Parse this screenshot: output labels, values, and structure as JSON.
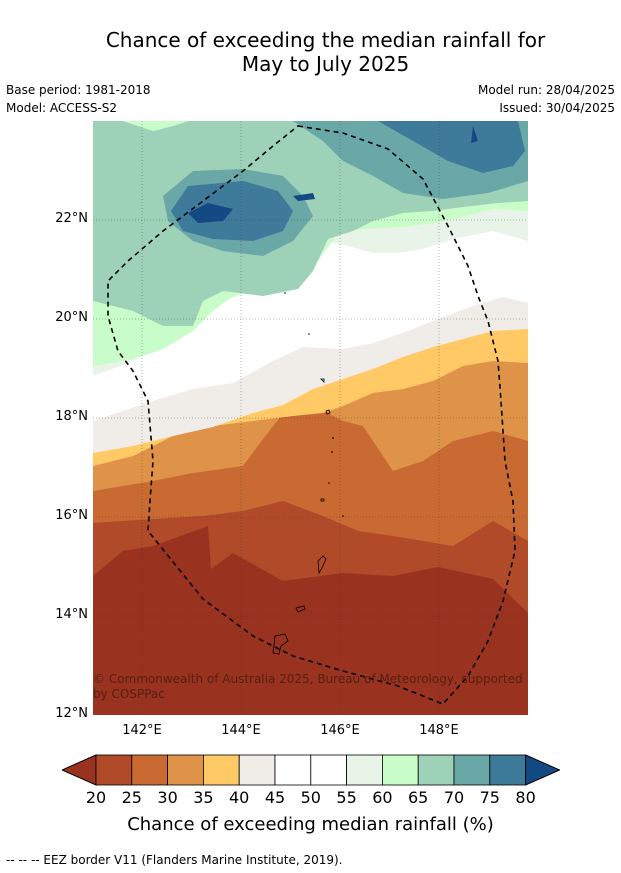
{
  "header": {
    "title_line1": "Chance of exceeding the median rainfall for",
    "title_line2": "May to July 2025",
    "base_period": "Base period: 1981-2018",
    "model": "Model: ACCESS-S2",
    "model_run": "Model run: 28/04/2025",
    "issued": "Issued: 30/04/2025"
  },
  "map": {
    "lat_labels": [
      "22°N",
      "20°N",
      "18°N",
      "16°N",
      "14°N",
      "12°N"
    ],
    "lon_labels": [
      "142°E",
      "144°E",
      "146°E",
      "148°E"
    ],
    "copyright": "© Commonwealth of Australia 2025, Bureau of Meteorology, supported by COSPPac"
  },
  "colorbar": {
    "ticks": [
      "20",
      "25",
      "30",
      "35",
      "40",
      "45",
      "50",
      "55",
      "60",
      "65",
      "70",
      "75",
      "80"
    ],
    "colors": [
      "#9a3220",
      "#b04a28",
      "#c96a32",
      "#df9348",
      "#ffca66",
      "#f0ece8",
      "#ffffff",
      "#ffffff",
      "#e8f4e8",
      "#c8fcc8",
      "#9ed2b8",
      "#6aa8a8",
      "#3e7a9a",
      "#144a84"
    ],
    "title": "Chance of exceeding median rainfall (%)"
  },
  "footer": {
    "legend": "--  --  -- EEZ border V11 (Flanders Marine Institute, 2019)."
  }
}
